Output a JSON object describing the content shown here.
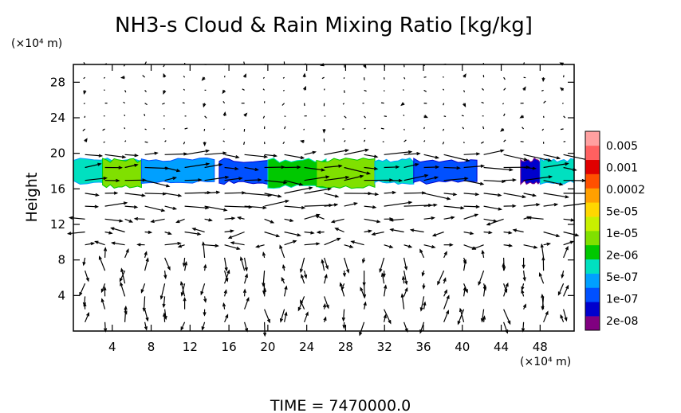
{
  "chart_data": {
    "type": "heatmap",
    "title": "NH3-s Cloud & Rain Mixing Ratio [kg/kg]",
    "ylabel": "Height",
    "xunit": "(×10⁴ m)",
    "yunit": "(×10⁴ m)",
    "xlim": [
      0,
      51.5
    ],
    "ylim": [
      0,
      30
    ],
    "xticks": [
      4,
      8,
      12,
      16,
      20,
      24,
      28,
      32,
      36,
      40,
      44,
      48
    ],
    "yticks": [
      4,
      8,
      12,
      16,
      20,
      24,
      28
    ],
    "xtick_labels": [
      "4",
      "8",
      "12",
      "16",
      "20",
      "24",
      "28",
      "32",
      "36",
      "40",
      "44",
      "48"
    ],
    "ytick_labels": [
      "4",
      "8",
      "12",
      "16",
      "20",
      "24",
      "28"
    ],
    "colorbar": {
      "colors": [
        "#800080",
        "#0000cd",
        "#0050ff",
        "#00a0ff",
        "#00e0c0",
        "#00c800",
        "#80e000",
        "#c8f000",
        "#ffd700",
        "#ffa000",
        "#ff5000",
        "#e00000",
        "#ff6060",
        "#ffa0a0"
      ],
      "labels": [
        "2e-08",
        "1e-07",
        "5e-07",
        "2e-06",
        "1e-05",
        "5e-05",
        "0.0002",
        "0.001",
        "0.005"
      ]
    },
    "cloud_layer": {
      "base": 16.5,
      "top": 19.5,
      "patches": [
        {
          "x0": 0,
          "x1": 7,
          "level": 4
        },
        {
          "x0": 3,
          "x1": 7,
          "level": 6
        },
        {
          "x0": 7,
          "x1": 14.5,
          "level": 3
        },
        {
          "x0": 15,
          "x1": 20,
          "level": 2
        },
        {
          "x0": 20,
          "x1": 26,
          "level": 5
        },
        {
          "x0": 25,
          "x1": 31,
          "level": 6
        },
        {
          "x0": 31,
          "x1": 35,
          "level": 4
        },
        {
          "x0": 35,
          "x1": 41.5,
          "level": 2
        },
        {
          "x0": 46,
          "x1": 48,
          "level": 1
        },
        {
          "x0": 48,
          "x1": 51.5,
          "level": 4
        }
      ]
    },
    "time_label": "TIME = 7470000.0"
  }
}
